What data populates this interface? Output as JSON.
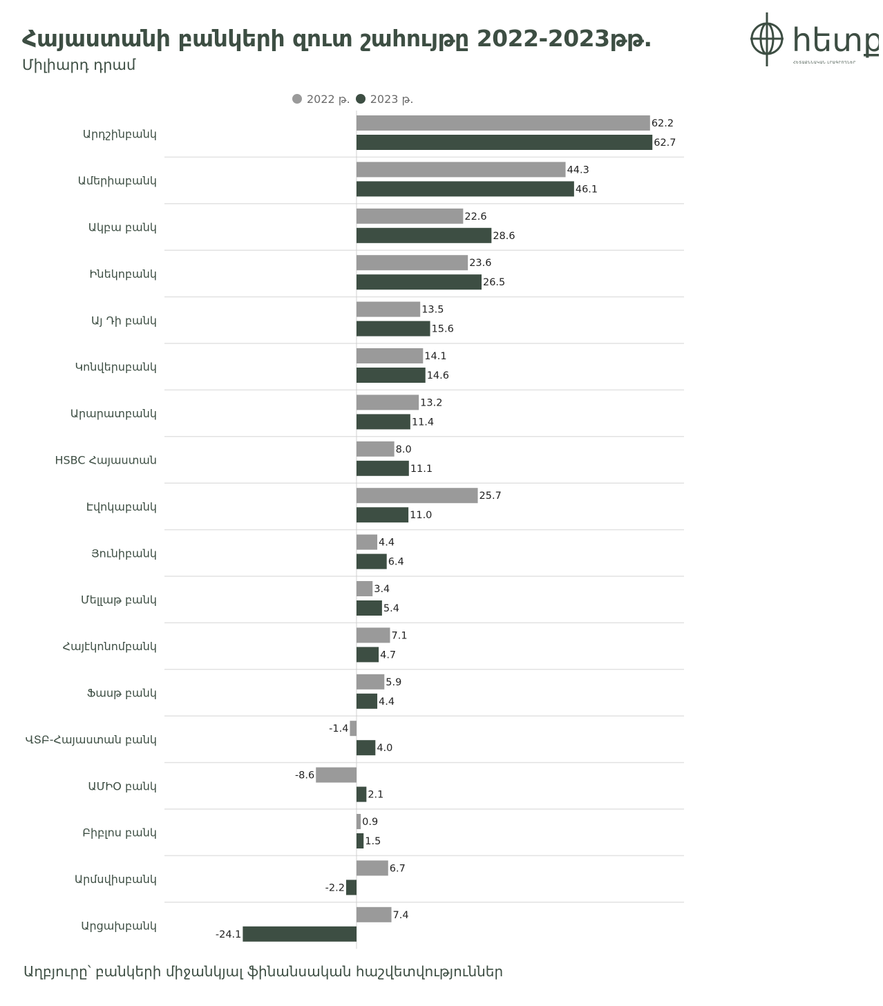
{
  "header": {
    "title": "Հայաստանի բանկերի զուտ շահույթը 2022-2023թթ.",
    "subtitle": "Միլիարդ դրամ"
  },
  "logo": {
    "text": "hետք",
    "tagline": "ՀԵՏԱՔՆՆԱԿԱՆ ԼՐԱԳՐՈՂՆԵՐ",
    "icon": "globe-compass-icon"
  },
  "footer": {
    "source": "Աղբյուրը՝ բանկերի միջանկյալ ֆինանսական հաշվետվություններ"
  },
  "colors": {
    "series_2022": "#9a9a9a",
    "series_2023": "#3d4e43",
    "text": "#3d4e43",
    "gridline": "#dddddd"
  },
  "chart_data": {
    "type": "bar",
    "orientation": "horizontal",
    "title": "Հայաստանի բանկերի զուտ շահույթը 2022-2023թթ.",
    "subtitle": "Միլիարդ դրամ",
    "legend_position": "top",
    "value_labels": true,
    "grid": false,
    "xlim": [
      -30,
      70
    ],
    "categories": [
      "Արդշինբանկ",
      "Ամերիաբանկ",
      "Ակբա բանկ",
      "Ինեկոբանկ",
      "Այ Դի բանկ",
      "Կոնվերսբանկ",
      "Արարատբանկ",
      "HSBC Հայաստան",
      "Էվոկաբանկ",
      "Յունիբանկ",
      "Մելլաթ բանկ",
      "Հայէկոնոմբանկ",
      "Ֆասթ բանկ",
      "ՎՏԲ-Հայաստան բանկ",
      "ԱՄԻՕ բանկ",
      "Բիբլոս բանկ",
      "Արմսվիսբանկ",
      "Արցախբանկ"
    ],
    "series": [
      {
        "name": "2022 թ.",
        "color": "#9a9a9a",
        "values": [
          62.2,
          44.3,
          22.6,
          23.6,
          13.5,
          14.1,
          13.2,
          8.0,
          25.7,
          4.4,
          3.4,
          7.1,
          5.9,
          -1.4,
          -8.6,
          0.9,
          6.7,
          7.4
        ]
      },
      {
        "name": "2023 թ.",
        "color": "#3d4e43",
        "values": [
          62.7,
          46.1,
          28.6,
          26.5,
          15.6,
          14.6,
          11.4,
          11.1,
          11.0,
          6.4,
          5.4,
          4.7,
          4.4,
          4.0,
          2.1,
          1.5,
          -2.2,
          -24.1
        ]
      }
    ]
  }
}
